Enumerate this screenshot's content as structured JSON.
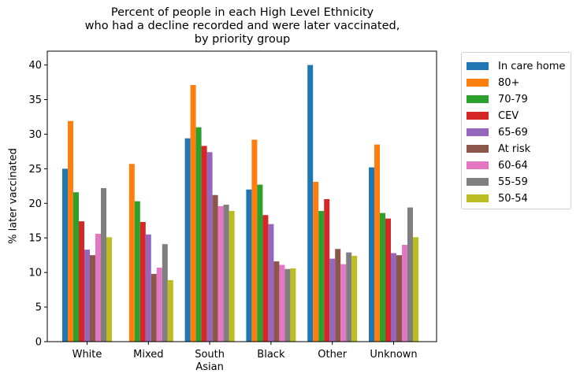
{
  "chart_data": {
    "type": "bar",
    "title": [
      "Percent of people in each High Level Ethnicity",
      "who had a decline recorded and were later vaccinated,",
      "by priority group"
    ],
    "xlabel": "",
    "ylabel": "% later vaccinated",
    "ylim": [
      0,
      42
    ],
    "yticks": [
      0,
      5,
      10,
      15,
      20,
      25,
      30,
      35,
      40
    ],
    "categories": [
      [
        "White"
      ],
      [
        "Mixed"
      ],
      [
        "South",
        "Asian"
      ],
      [
        "Black"
      ],
      [
        "Other"
      ],
      [
        "Unknown"
      ]
    ],
    "legend_position": "outside-top-right",
    "grid": false,
    "series": [
      {
        "name": "In care home",
        "color": "#1f77b4",
        "values": [
          25.0,
          null,
          29.4,
          22.0,
          40.0,
          25.2
        ]
      },
      {
        "name": "80+",
        "color": "#ff7f0e",
        "values": [
          31.9,
          25.7,
          37.1,
          29.2,
          23.1,
          28.5
        ]
      },
      {
        "name": "70-79",
        "color": "#2ca02c",
        "values": [
          21.6,
          20.3,
          31.0,
          22.7,
          18.9,
          18.6
        ]
      },
      {
        "name": "CEV",
        "color": "#d62728",
        "values": [
          17.4,
          17.3,
          28.3,
          18.3,
          20.6,
          17.8
        ]
      },
      {
        "name": "65-69",
        "color": "#9467bd",
        "values": [
          13.3,
          15.5,
          27.4,
          17.0,
          12.0,
          12.8
        ]
      },
      {
        "name": "At risk",
        "color": "#8c564b",
        "values": [
          12.5,
          9.8,
          21.2,
          11.6,
          13.4,
          12.5
        ]
      },
      {
        "name": "60-64",
        "color": "#e377c2",
        "values": [
          15.6,
          10.7,
          19.6,
          11.1,
          11.2,
          14.0
        ]
      },
      {
        "name": "55-59",
        "color": "#7f7f7f",
        "values": [
          22.2,
          14.1,
          19.8,
          10.5,
          12.9,
          19.4
        ]
      },
      {
        "name": "50-54",
        "color": "#bcbd22",
        "values": [
          15.1,
          8.9,
          18.9,
          10.6,
          12.4,
          15.1
        ]
      }
    ]
  }
}
